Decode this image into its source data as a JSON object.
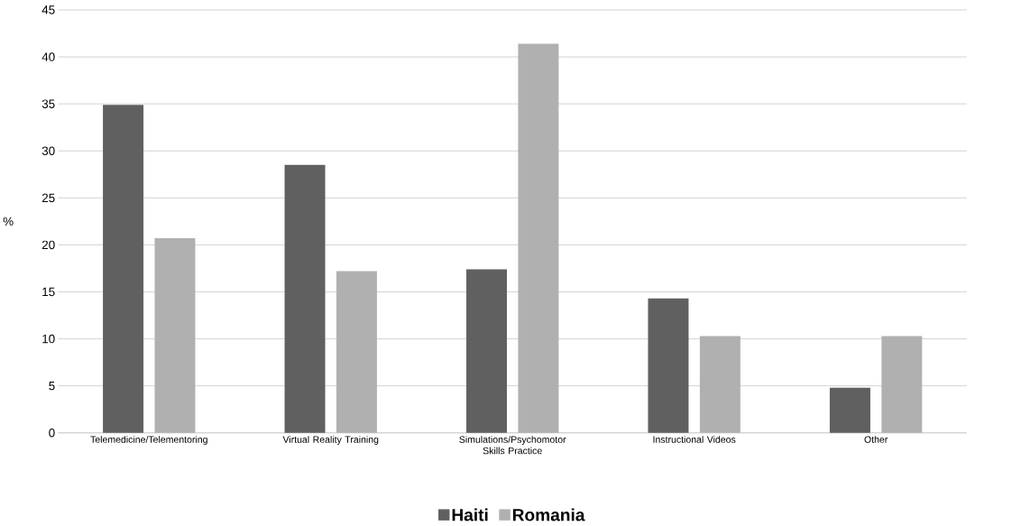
{
  "chart_data": {
    "type": "bar",
    "ylabel": "%",
    "categories": [
      "Telemedicine/Telementoring",
      "Virtual Reality Training",
      "Simulations/Psychomotor Skills Practice",
      "Instructional Videos",
      "Other"
    ],
    "series": [
      {
        "name": "Haiti",
        "color": "#606060",
        "values": [
          34.9,
          28.5,
          17.4,
          14.3,
          4.8
        ]
      },
      {
        "name": "Romania",
        "color": "#b0b0b0",
        "values": [
          20.7,
          17.2,
          41.4,
          10.3,
          10.3
        ]
      }
    ],
    "ylim": [
      0,
      45
    ],
    "yticks": [
      0,
      5,
      10,
      15,
      20,
      25,
      30,
      35,
      40,
      45
    ],
    "grid": "y",
    "legend": "bottom"
  }
}
